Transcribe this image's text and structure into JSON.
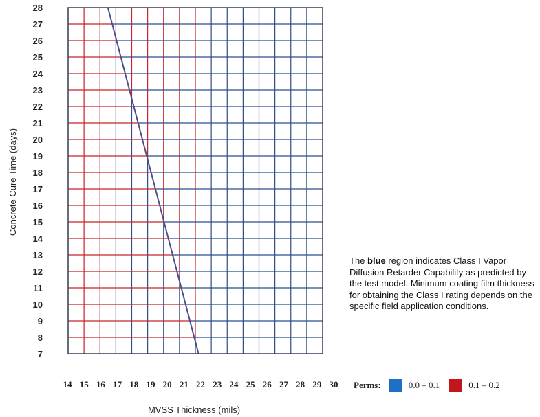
{
  "chart_data": {
    "type": "area",
    "xlabel": "MVSS Thickness (mils)",
    "ylabel": "Concrete Cure Time (days)",
    "xlim": [
      14,
      30
    ],
    "ylim": [
      7,
      28
    ],
    "x_ticks": [
      14,
      15,
      16,
      17,
      18,
      19,
      20,
      21,
      22,
      23,
      24,
      25,
      26,
      27,
      28,
      29,
      30
    ],
    "y_ticks": [
      7,
      8,
      9,
      10,
      11,
      12,
      13,
      14,
      15,
      16,
      17,
      18,
      19,
      20,
      21,
      22,
      23,
      24,
      25,
      26,
      27,
      28
    ],
    "grid": true,
    "boundary_line": {
      "x": [
        16.5,
        22.2
      ],
      "y": [
        28,
        7
      ]
    },
    "regions": [
      {
        "side": "left",
        "color": "#c8242b",
        "legend_label": "0.1 – 0.2"
      },
      {
        "side": "right",
        "color": "#2b4d8e",
        "legend_label": "0.0 – 0.1"
      }
    ],
    "line_color": "#4a4f8a"
  },
  "legend": {
    "title": "Perms:",
    "items": [
      {
        "label": "0.0 – 0.1",
        "color": "#1f6fc5"
      },
      {
        "label": "0.1 – 0.2",
        "color": "#c2161d"
      }
    ]
  },
  "note": {
    "prefix": "The ",
    "bold": "blue",
    "suffix": " region indicates Class I Vapor Diffusion Retarder Capability as predicted by the test model. Minimum coating film thickness for obtaining the Class I rating depends on the specific field application conditions."
  }
}
